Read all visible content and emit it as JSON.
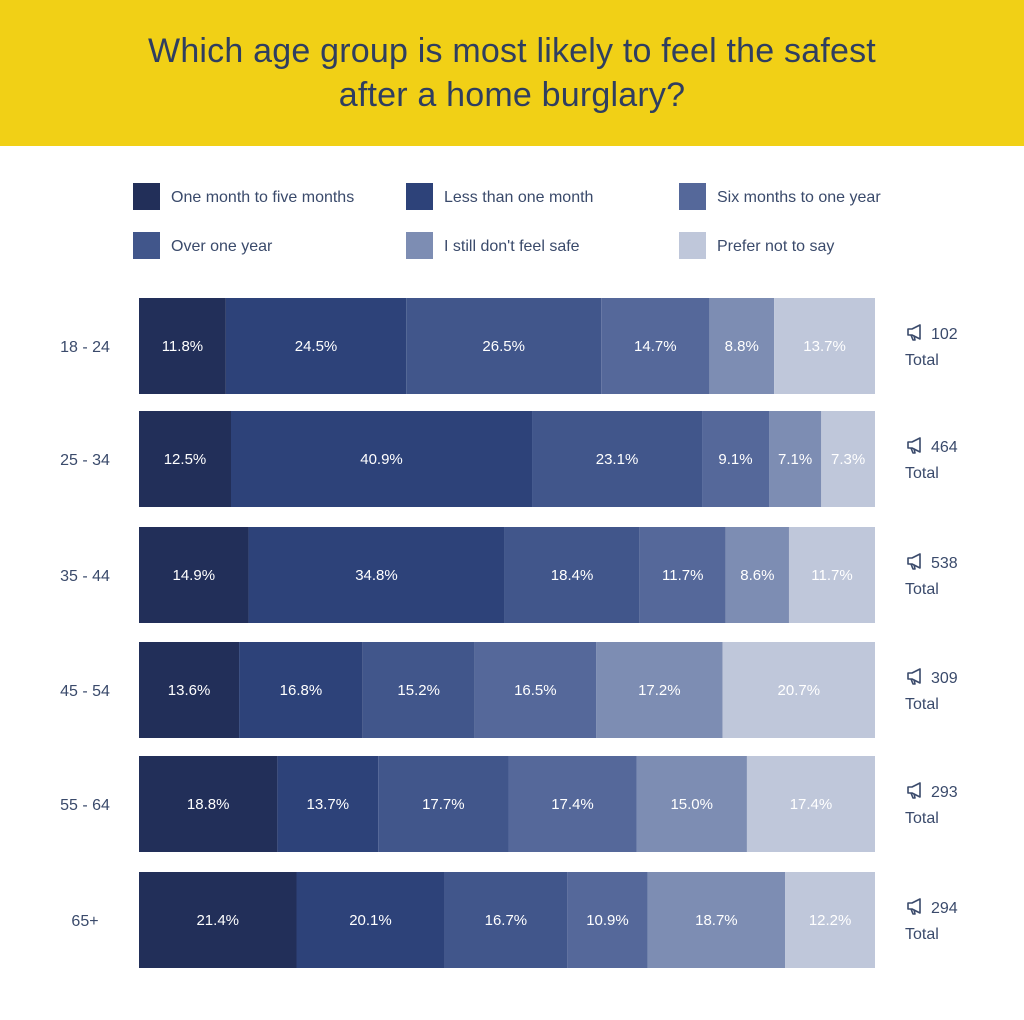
{
  "chart_data": {
    "type": "bar",
    "orientation": "horizontal",
    "stacked": "100%",
    "title": "Which age group is most likely to feel the safest after a home burglary?",
    "legend_position": "top",
    "categories": [
      "18 - 24",
      "25 - 34",
      "35 - 44",
      "45 - 54",
      "55 - 64",
      "65+"
    ],
    "series": [
      {
        "name": "One month to five months",
        "color": "#222f59",
        "values": [
          11.8,
          12.5,
          14.9,
          13.6,
          18.8,
          21.4
        ]
      },
      {
        "name": "Less than one month",
        "color": "#2d4279",
        "values": [
          24.5,
          40.9,
          34.8,
          16.8,
          13.7,
          20.1
        ]
      },
      {
        "name": "Over one year",
        "color": "#41568b",
        "values": [
          26.5,
          23.1,
          18.4,
          15.2,
          17.7,
          16.7
        ]
      },
      {
        "name": "Six months to one year",
        "color": "#55689a",
        "values": [
          14.7,
          9.1,
          11.7,
          16.5,
          17.4,
          10.9
        ]
      },
      {
        "name": "I still don't feel safe",
        "color": "#7d8db3",
        "values": [
          8.8,
          7.1,
          8.6,
          17.2,
          15.0,
          18.7
        ]
      },
      {
        "name": "Prefer not to say",
        "color": "#bfc7da",
        "values": [
          13.7,
          7.3,
          11.7,
          20.7,
          17.4,
          12.2
        ]
      }
    ],
    "value_labels": [
      [
        "11.8%",
        "24.5%",
        "26.5%",
        "14.7%",
        "8.8%",
        "13.7%"
      ],
      [
        "12.5%",
        "40.9%",
        "23.1%",
        "9.1%",
        "7.1%",
        "7.3%"
      ],
      [
        "14.9%",
        "34.8%",
        "18.4%",
        "11.7%",
        "8.6%",
        "11.7%"
      ],
      [
        "13.6%",
        "16.8%",
        "15.2%",
        "16.5%",
        "17.2%",
        "20.7%"
      ],
      [
        "18.8%",
        "13.7%",
        "17.7%",
        "17.4%",
        "15.0%",
        "17.4%"
      ],
      [
        "21.4%",
        "20.1%",
        "16.7%",
        "10.9%",
        "18.7%",
        "12.2%"
      ]
    ],
    "totals": [
      102,
      464,
      538,
      309,
      293,
      294
    ],
    "total_label": "Total",
    "total_icon": "megaphone-icon",
    "legend_order": [
      0,
      1,
      3,
      2,
      4,
      5
    ]
  }
}
